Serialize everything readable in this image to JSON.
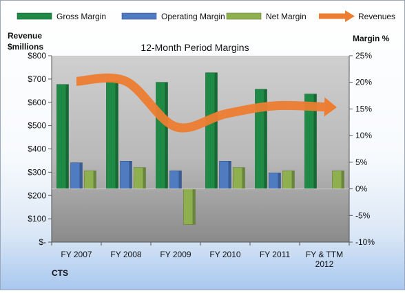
{
  "chart_data": {
    "type": "bar",
    "title": "12-Month Period Margins",
    "company": "CTS",
    "categories": [
      "FY 2007",
      "FY 2008",
      "FY 2009",
      "FY 2010",
      "FY 2011",
      "FY & TTM|2012"
    ],
    "left_axis": {
      "label_line1": "Revenue",
      "label_line2": "$millions",
      "range": [
        0,
        800
      ],
      "ticks": [
        0,
        100,
        200,
        300,
        400,
        500,
        600,
        700,
        800
      ],
      "tick_labels": [
        "$-",
        "$100",
        "$200",
        "$300",
        "$400",
        "$500",
        "$600",
        "$700",
        "$800"
      ]
    },
    "right_axis": {
      "label": "Margin %",
      "range": [
        -10,
        25
      ],
      "ticks": [
        -10,
        -5,
        0,
        5,
        10,
        15,
        20,
        25
      ],
      "tick_labels": [
        "-10%",
        "-5%",
        "0%",
        "5%",
        "10%",
        "15%",
        "20%",
        "25%"
      ]
    },
    "series": [
      {
        "name": "Gross Margin",
        "type": "bar",
        "axis": "right",
        "color": "#1f8a46",
        "values": [
          19.6,
          20.2,
          20.0,
          21.8,
          18.7,
          17.8
        ]
      },
      {
        "name": "Operating Margin",
        "type": "bar",
        "axis": "right",
        "color": "#4f7bc1",
        "values": [
          4.9,
          5.2,
          3.4,
          5.2,
          3.0,
          0.0
        ]
      },
      {
        "name": "Net Margin",
        "type": "bar",
        "axis": "right",
        "color": "#8fb04f",
        "values": [
          3.4,
          4.0,
          -6.7,
          4.0,
          3.4,
          3.4
        ]
      },
      {
        "name": "Revenues",
        "type": "line",
        "axis": "left",
        "color": "#ed7d31",
        "values": [
          690,
          690,
          495,
          550,
          585,
          580
        ]
      }
    ],
    "legend_position": "top",
    "grid": false
  }
}
